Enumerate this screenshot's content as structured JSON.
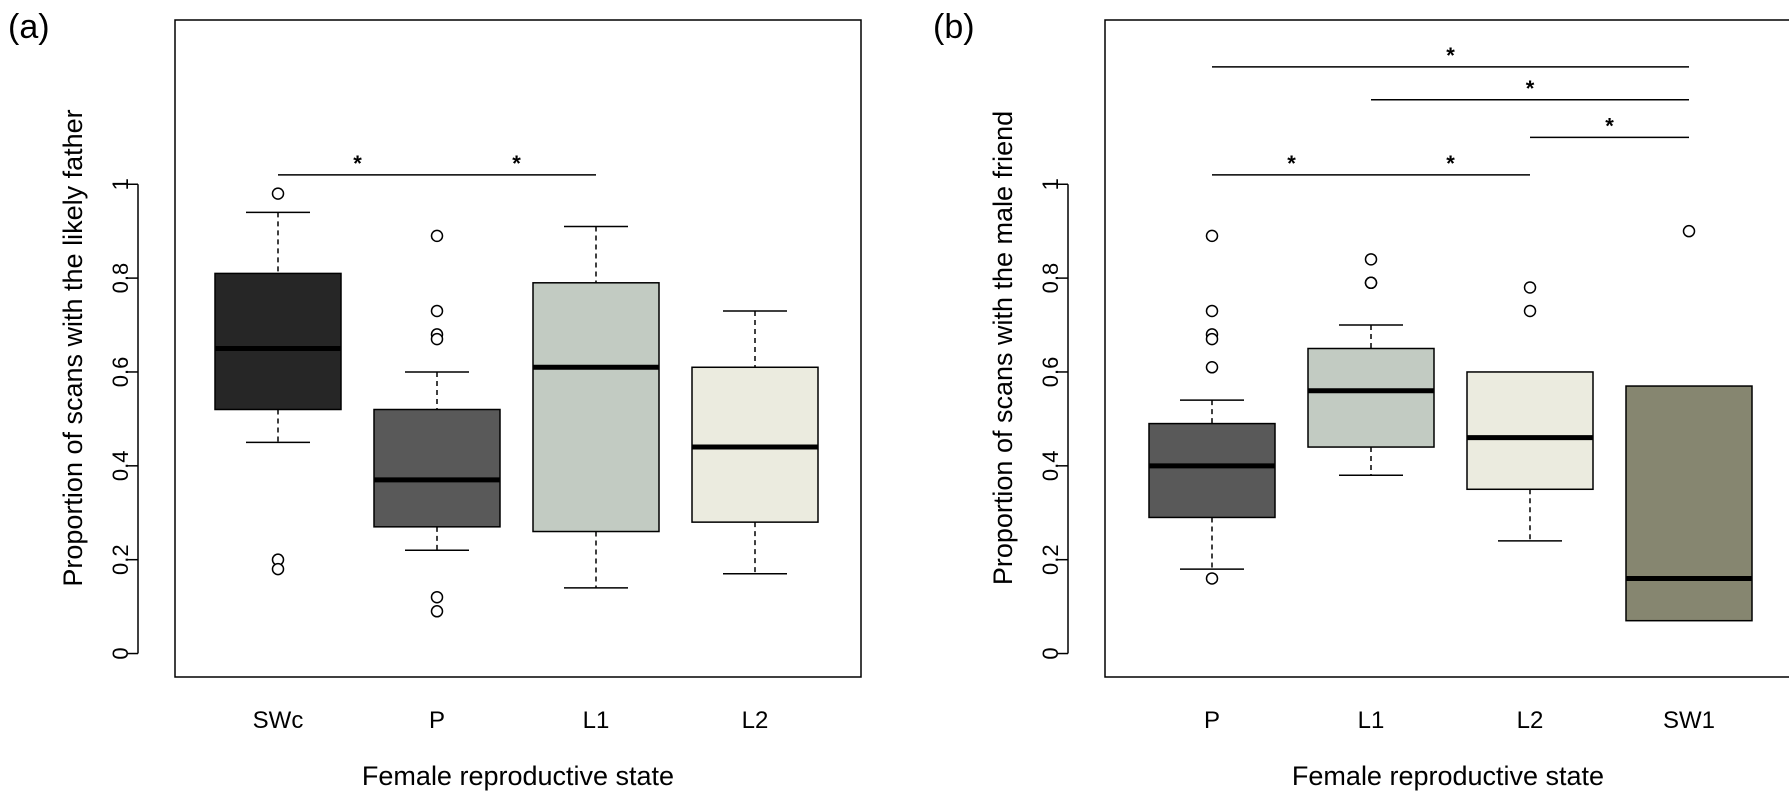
{
  "chart_data": [
    {
      "type": "boxplot",
      "panel_label": "(a)",
      "xlabel": "Female reproductive state",
      "ylabel": "Proportion of scans with the likely father",
      "categories": [
        "SWc",
        "P",
        "L1",
        "L2"
      ],
      "yticks": [
        0,
        0.2,
        0.4,
        0.6,
        0.8,
        1
      ],
      "ylim": [
        -0.05,
        1.35
      ],
      "boxes": [
        {
          "category": "SWc",
          "whisker_low": 0.45,
          "q1": 0.52,
          "median": 0.65,
          "q3": 0.81,
          "whisker_high": 0.94,
          "outliers": [
            0.98,
            0.2,
            0.18
          ],
          "color": "#262626"
        },
        {
          "category": "P",
          "whisker_low": 0.22,
          "q1": 0.27,
          "median": 0.37,
          "q3": 0.52,
          "whisker_high": 0.6,
          "outliers": [
            0.89,
            0.73,
            0.68,
            0.67,
            0.12,
            0.09
          ],
          "color": "#595959"
        },
        {
          "category": "L1",
          "whisker_low": 0.14,
          "q1": 0.26,
          "median": 0.61,
          "q3": 0.79,
          "whisker_high": 0.91,
          "outliers": [],
          "color": "#c2cbc2"
        },
        {
          "category": "L2",
          "whisker_low": 0.17,
          "q1": 0.28,
          "median": 0.44,
          "q3": 0.61,
          "whisker_high": 0.73,
          "outliers": [],
          "color": "#ebebdf"
        }
      ],
      "significance": [
        {
          "from": "SWc",
          "to": "P",
          "y": 1.02,
          "label": "*"
        },
        {
          "from": "P",
          "to": "L1",
          "y": 1.02,
          "label": "*"
        }
      ]
    },
    {
      "type": "boxplot",
      "panel_label": "(b)",
      "xlabel": "Female reproductive state",
      "ylabel": "Proportion of scans with the male friend",
      "categories": [
        "P",
        "L1",
        "L2",
        "SW1"
      ],
      "yticks": [
        0,
        0.2,
        0.4,
        0.6,
        0.8,
        1
      ],
      "ylim": [
        -0.05,
        1.35
      ],
      "boxes": [
        {
          "category": "P",
          "whisker_low": 0.18,
          "q1": 0.29,
          "median": 0.4,
          "q3": 0.49,
          "whisker_high": 0.54,
          "outliers": [
            0.89,
            0.73,
            0.68,
            0.67,
            0.61,
            0.16
          ],
          "color": "#595959"
        },
        {
          "category": "L1",
          "whisker_low": 0.38,
          "q1": 0.44,
          "median": 0.56,
          "q3": 0.65,
          "whisker_high": 0.7,
          "outliers": [
            0.84,
            0.79,
            0.79
          ],
          "color": "#c2cbc2"
        },
        {
          "category": "L2",
          "whisker_low": 0.24,
          "q1": 0.35,
          "median": 0.46,
          "q3": 0.6,
          "whisker_high": 0.6,
          "outliers": [
            0.78,
            0.73
          ],
          "color": "#ebebdf"
        },
        {
          "category": "SW1",
          "whisker_low": 0.07,
          "q1": 0.07,
          "median": 0.16,
          "q3": 0.57,
          "whisker_high": 0.57,
          "outliers": [
            0.9
          ],
          "color": "#868670"
        }
      ],
      "significance": [
        {
          "from": "P",
          "to": "SW1",
          "y": 1.25,
          "label": "*"
        },
        {
          "from": "L1",
          "to": "SW1",
          "y": 1.18,
          "label": "*"
        },
        {
          "from": "L2",
          "to": "SW1",
          "y": 1.1,
          "label": "*"
        },
        {
          "from": "P",
          "to": "L1",
          "y": 1.02,
          "label": "*"
        },
        {
          "from": "L1",
          "to": "L2",
          "y": 1.02,
          "label": "*"
        }
      ]
    }
  ]
}
